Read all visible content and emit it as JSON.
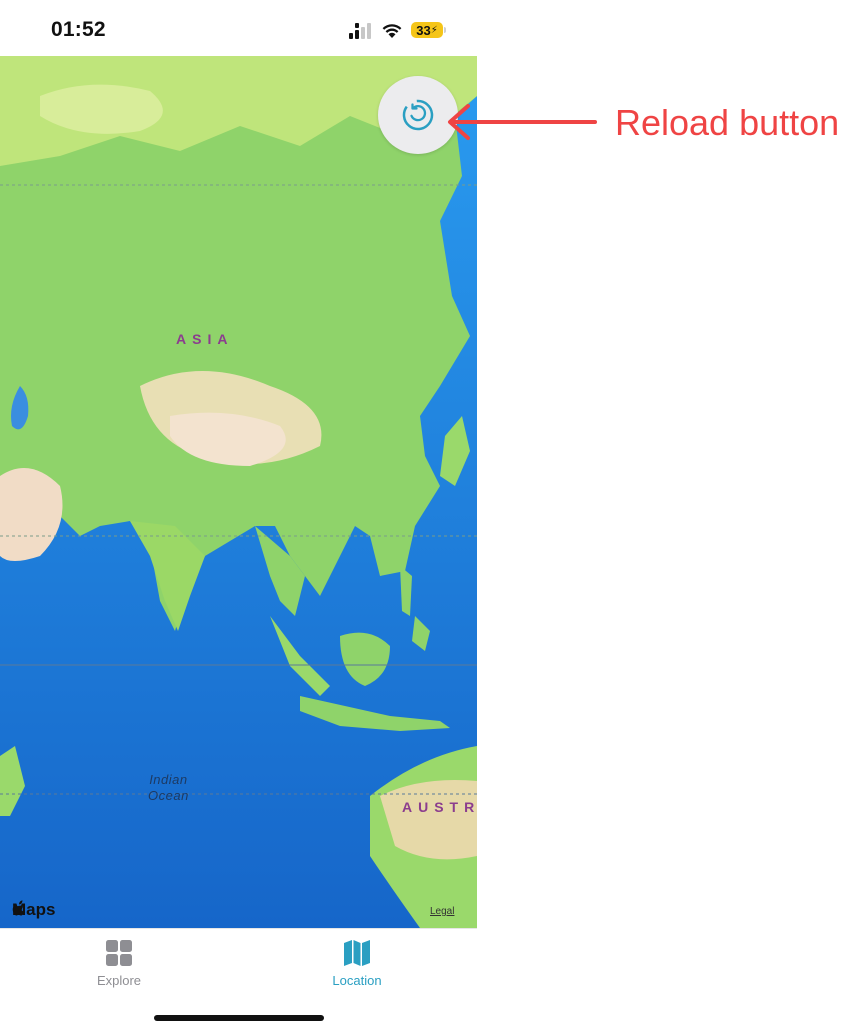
{
  "status_bar": {
    "time": "01:52",
    "battery_level": "33",
    "icons": [
      "cellular-signal-icon",
      "wifi-icon",
      "battery-charging-icon"
    ]
  },
  "map": {
    "labels": {
      "continent_asia": "ASIA",
      "continent_australia": "AUSTR",
      "ocean_line1": "Indian",
      "ocean_line2": "Ocean"
    },
    "attribution": "Maps",
    "legal": "Legal"
  },
  "reload_button": {
    "icon": "reload-icon",
    "color": "#2a9fc2"
  },
  "tab_bar": {
    "tabs": [
      {
        "label": "Explore",
        "icon": "grid-icon",
        "selected": false
      },
      {
        "label": "Location",
        "icon": "map-icon",
        "selected": true
      }
    ],
    "active_color": "#2a9fc2",
    "inactive_color": "#8e8e93"
  },
  "annotation": {
    "text": "Reload button",
    "color": "#ef4444"
  }
}
